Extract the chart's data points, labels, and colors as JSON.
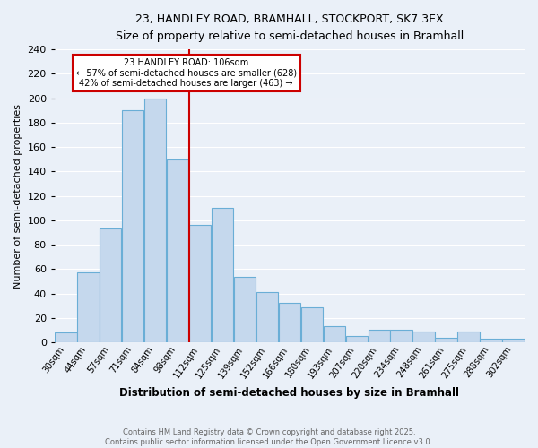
{
  "title": "23, HANDLEY ROAD, BRAMHALL, STOCKPORT, SK7 3EX",
  "subtitle": "Size of property relative to semi-detached houses in Bramhall",
  "xlabel": "Distribution of semi-detached houses by size in Bramhall",
  "ylabel": "Number of semi-detached properties",
  "bin_labels": [
    "30sqm",
    "44sqm",
    "57sqm",
    "71sqm",
    "84sqm",
    "98sqm",
    "112sqm",
    "125sqm",
    "139sqm",
    "152sqm",
    "166sqm",
    "180sqm",
    "193sqm",
    "207sqm",
    "220sqm",
    "234sqm",
    "248sqm",
    "261sqm",
    "275sqm",
    "288sqm",
    "302sqm"
  ],
  "bar_values": [
    8,
    57,
    93,
    190,
    200,
    150,
    96,
    110,
    54,
    41,
    32,
    29,
    13,
    5,
    10,
    10,
    9,
    4,
    9,
    3,
    3
  ],
  "bar_color": "#c5d8ed",
  "bar_edgecolor": "#6aaed6",
  "bg_color": "#eaf0f8",
  "grid_color": "#ffffff",
  "vline_color": "#cc0000",
  "annotation_title": "23 HANDLEY ROAD: 106sqm",
  "annotation_line1": "← 57% of semi-detached houses are smaller (628)",
  "annotation_line2": "42% of semi-detached houses are larger (463) →",
  "annotation_box_facecolor": "#ffffff",
  "annotation_box_edgecolor": "#cc0000",
  "ylim": [
    0,
    240
  ],
  "yticks": [
    0,
    20,
    40,
    60,
    80,
    100,
    120,
    140,
    160,
    180,
    200,
    220,
    240
  ],
  "footer1": "Contains HM Land Registry data © Crown copyright and database right 2025.",
  "footer2": "Contains public sector information licensed under the Open Government Licence v3.0.",
  "vline_bin_index": 6
}
